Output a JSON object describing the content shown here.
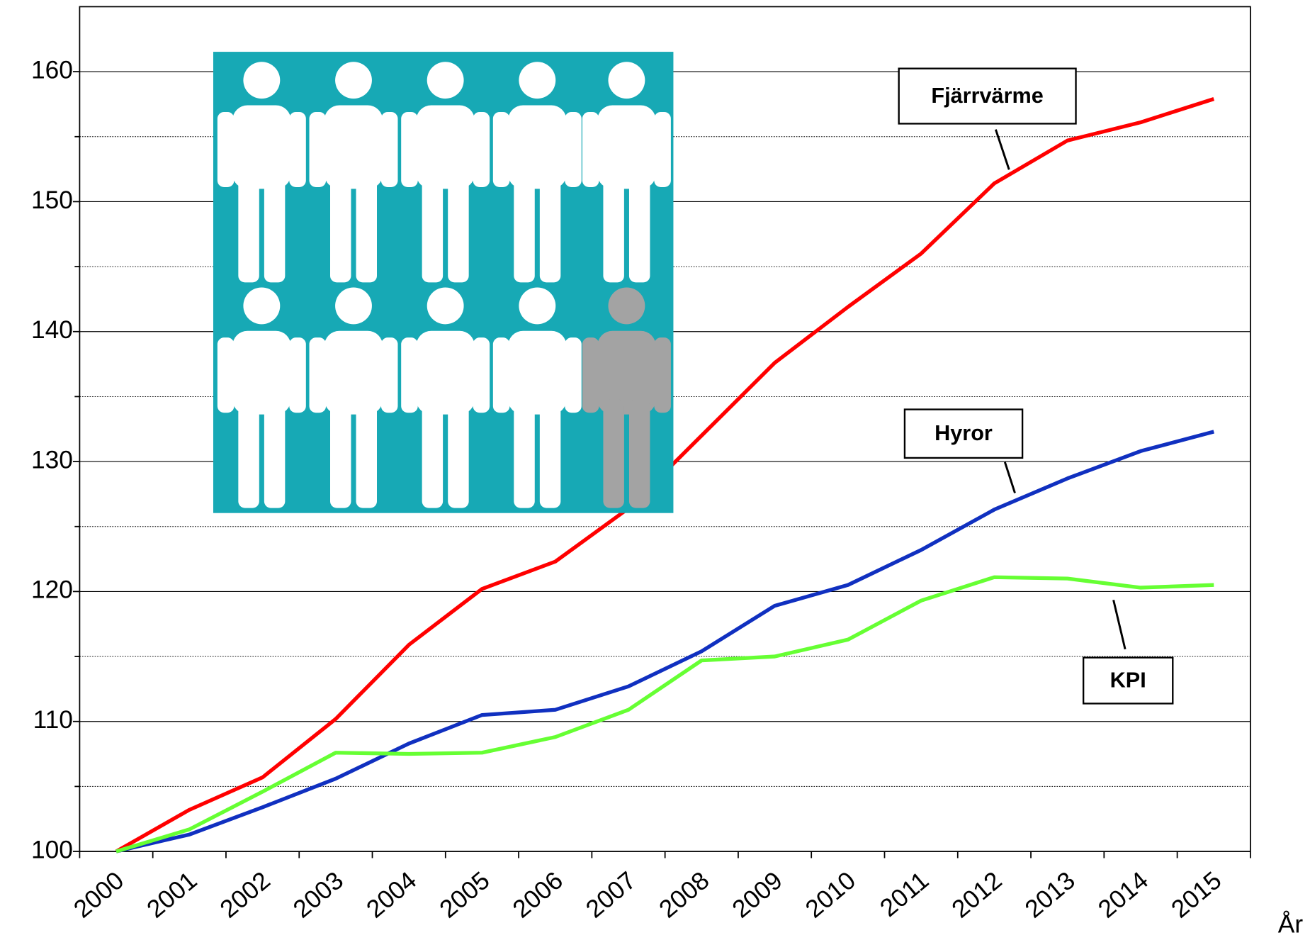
{
  "chart_data": {
    "type": "line",
    "categories": [
      "2000",
      "2001",
      "2002",
      "2003",
      "2004",
      "2005",
      "2006",
      "2007",
      "2008",
      "2009",
      "2010",
      "2011",
      "2012",
      "2013",
      "2014",
      "2015"
    ],
    "x_label": "År",
    "ylim": [
      100,
      165
    ],
    "yticks": [
      100,
      110,
      120,
      130,
      140,
      150,
      160
    ],
    "grid": true,
    "series": [
      {
        "name": "Fjärrvärme",
        "color": "#ff0000",
        "values": [
          100,
          103.2,
          105.7,
          110.2,
          115.9,
          120.2,
          122.3,
          126.4,
          132.0,
          137.6,
          141.9,
          146.0,
          151.4,
          154.7,
          156.1,
          157.9
        ]
      },
      {
        "name": "Hyror",
        "color": "#1030c0",
        "values": [
          100,
          101.3,
          103.4,
          105.6,
          108.3,
          110.5,
          110.9,
          112.7,
          115.4,
          118.9,
          120.5,
          123.2,
          126.3,
          128.7,
          130.8,
          132.3
        ]
      },
      {
        "name": "KPI",
        "color": "#66ff33",
        "values": [
          100,
          101.7,
          104.6,
          107.6,
          107.5,
          107.6,
          108.8,
          110.9,
          114.7,
          115.0,
          116.3,
          119.3,
          121.1,
          121.0,
          120.3,
          120.5
        ]
      }
    ]
  }
}
